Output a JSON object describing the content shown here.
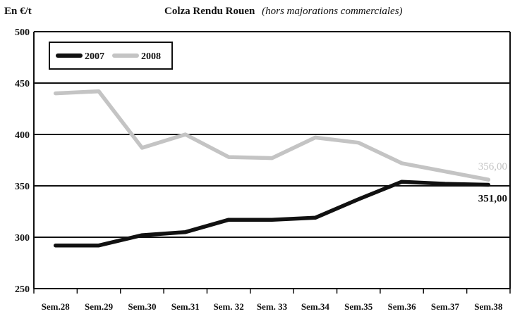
{
  "chart_data": {
    "type": "line",
    "title": "Colza Rendu Rouen",
    "subtitle": "(hors majorations commerciales)",
    "ylabel": "En €/t",
    "xlabel": "",
    "ylim": [
      250,
      500
    ],
    "yticks": [
      250,
      300,
      350,
      400,
      450,
      500
    ],
    "grid": true,
    "legend_position": "top-left",
    "categories": [
      "Sem.28",
      "Sem.29",
      "Sem.30",
      "Sem.31",
      "Sem. 32",
      "Sem. 33",
      "Sem.34",
      "Sem.35",
      "Sem.36",
      "Sem.37",
      "Sem.38"
    ],
    "series": [
      {
        "name": "2007",
        "color": "#111111",
        "values": [
          292,
          292,
          302,
          305,
          317,
          317,
          319,
          337,
          354,
          352,
          351
        ]
      },
      {
        "name": "2008",
        "color": "#c4c4c4",
        "values": [
          440,
          442,
          387,
          400,
          378,
          377,
          397,
          392,
          372,
          364,
          356
        ]
      }
    ],
    "annotations": [
      {
        "series": "2008",
        "text": "356,00",
        "color": "#c4c4c4"
      },
      {
        "series": "2007",
        "text": "351,00",
        "color": "#111111"
      }
    ]
  }
}
